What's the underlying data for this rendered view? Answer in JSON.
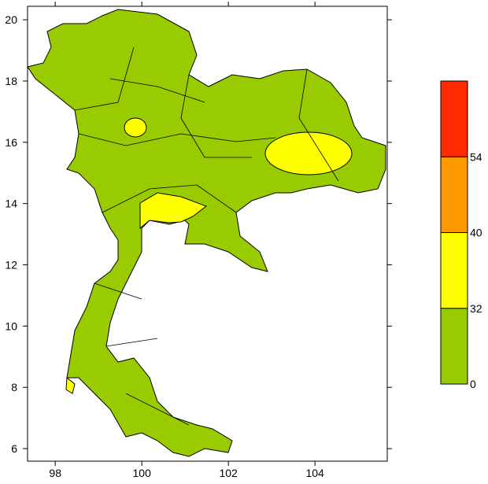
{
  "map": {
    "xlim": [
      97.36,
      105.67
    ],
    "ylim": [
      5.59,
      20.44
    ],
    "xticks": [
      98,
      100,
      102,
      104
    ],
    "yticks": [
      6,
      8,
      10,
      12,
      14,
      16,
      18,
      20
    ]
  },
  "legend": {
    "ticks": [
      0,
      32,
      40,
      54
    ],
    "colors": [
      "#99cc00",
      "#ffff00",
      "#ff9900",
      "#ff2a00"
    ]
  }
}
